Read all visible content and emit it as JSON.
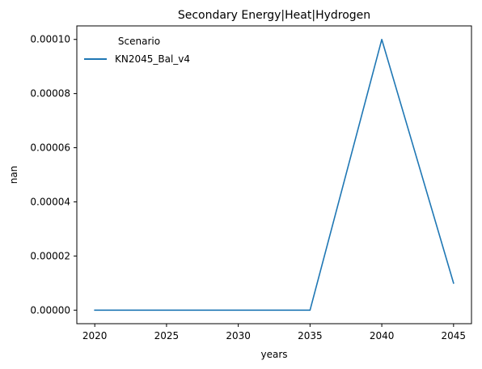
{
  "chart_data": {
    "type": "line",
    "title": "Secondary Energy|Heat|Hydrogen",
    "xlabel": "years",
    "ylabel": "nan",
    "x": [
      2020,
      2025,
      2030,
      2035,
      2040,
      2045
    ],
    "xlim": [
      2018.75,
      2046.25
    ],
    "ylim": [
      -5e-06,
      0.000105
    ],
    "xticks": [
      2020,
      2025,
      2030,
      2035,
      2040,
      2045
    ],
    "xtick_labels": [
      "2020",
      "2025",
      "2030",
      "2035",
      "2040",
      "2045"
    ],
    "yticks": [
      0,
      2e-05,
      4e-05,
      6e-05,
      8e-05,
      0.0001
    ],
    "ytick_labels": [
      "0.00000",
      "0.00002",
      "0.00004",
      "0.00006",
      "0.00008",
      "0.00010"
    ],
    "grid": false,
    "legend": {
      "title": "Scenario",
      "placement": "top-left"
    },
    "series": [
      {
        "name": "KN2045_Bal_v4",
        "color": "#1f77b4",
        "values": [
          0,
          0,
          0,
          0,
          0.0001,
          1e-05
        ]
      }
    ]
  }
}
